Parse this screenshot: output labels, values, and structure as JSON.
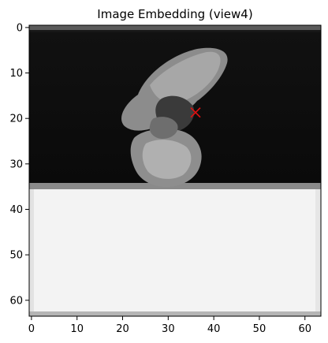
{
  "title": "Image Embedding (view4)",
  "image": {
    "width": 64,
    "height": 64,
    "colormap": "gray",
    "description_regions": {
      "background_top": "near-black",
      "background_bottom": "near-white",
      "subject": "gray blob shape"
    }
  },
  "axes": {
    "x_ticks": [
      0,
      10,
      20,
      30,
      40,
      50,
      60
    ],
    "y_ticks": [
      0,
      10,
      20,
      30,
      40,
      50,
      60
    ],
    "xlim": [
      -0.5,
      63.5
    ],
    "ylim": [
      63.5,
      -0.5
    ]
  },
  "marker": {
    "symbol": "x",
    "color": "#e01010",
    "x": 36,
    "y": 18.7
  },
  "colors": {
    "dark_bg": "#0b0b0b",
    "light_bg": "#f4f4f4",
    "marker": "#e01010"
  }
}
